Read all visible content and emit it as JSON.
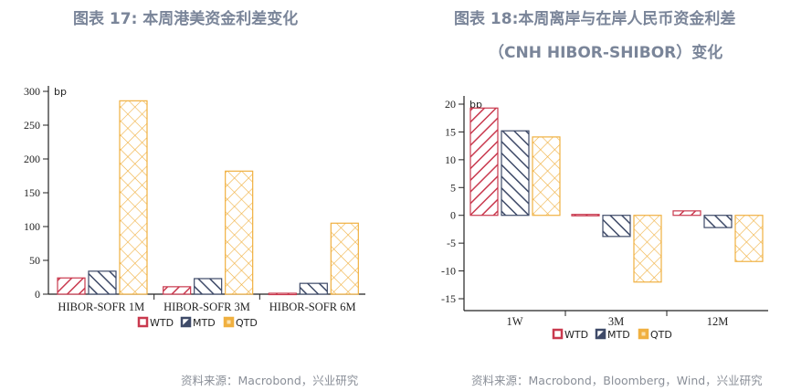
{
  "left_panel": {
    "title": "图表 17: 本周港美资金利差变化",
    "source": "资料来源：Macrobond，兴业研究"
  },
  "right_panel": {
    "title_line1": "图表 18:本周离岸与在岸人民币资金利差",
    "title_line2": "（CNH HIBOR-SHIBOR）变化",
    "source": "资料来源：Macrobond，Bloomberg，Wind，兴业研究"
  },
  "colors": {
    "WTD": "#c9394e",
    "MTD": "#3e4a68",
    "QTD": "#f0b040",
    "title": "#7a8599",
    "source": "#8a8f98"
  },
  "chart_data": [
    {
      "type": "bar",
      "title": "图表 17: 本周港美资金利差变化",
      "unit_label": "bp",
      "categories": [
        "HIBOR-SOFR 1M",
        "HIBOR-SOFR 3M",
        "HIBOR-SOFR 6M"
      ],
      "series": [
        {
          "name": "WTD",
          "values": [
            24,
            11,
            2
          ]
        },
        {
          "name": "MTD",
          "values": [
            34,
            23,
            16
          ]
        },
        {
          "name": "QTD",
          "values": [
            286,
            182,
            105
          ]
        }
      ],
      "yticks": [
        0,
        50,
        100,
        150,
        200,
        250,
        300
      ],
      "ylim": [
        0,
        300
      ],
      "xlabel": "",
      "ylabel": "bp",
      "grid": false,
      "legend_position": "bottom"
    },
    {
      "type": "bar",
      "title": "图表 18:本周离岸与在岸人民币资金利差（CNH HIBOR-SHIBOR）变化",
      "unit_label": "bp",
      "categories": [
        "1W",
        "3M",
        "12M"
      ],
      "series": [
        {
          "name": "WTD",
          "values": [
            19.3,
            -0.1,
            0.8
          ]
        },
        {
          "name": "MTD",
          "values": [
            15.2,
            -3.8,
            -2.2
          ]
        },
        {
          "name": "QTD",
          "values": [
            14.1,
            -12.0,
            -8.3
          ]
        }
      ],
      "yticks": [
        -15,
        -10,
        -5,
        0,
        5,
        10,
        15,
        20
      ],
      "ylim": [
        -17,
        21
      ],
      "xlabel": "",
      "ylabel": "bp",
      "grid": false,
      "legend_position": "bottom"
    }
  ]
}
